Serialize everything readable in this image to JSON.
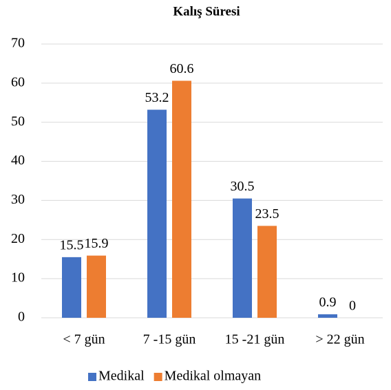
{
  "chart_data": {
    "type": "bar",
    "title": "Kalış Süresi",
    "categories": [
      "< 7 gün",
      "7 -15 gün",
      "15 -21 gün",
      "> 22 gün"
    ],
    "series": [
      {
        "name": "Medikal",
        "color": "#4472c4",
        "values": [
          15.5,
          53.2,
          30.5,
          0.9
        ]
      },
      {
        "name": "Medikal olmayan",
        "color": "#ed7d31",
        "values": [
          15.9,
          60.6,
          23.5,
          0
        ]
      }
    ],
    "ylim": [
      0,
      70
    ],
    "yticks": [
      0,
      10,
      20,
      30,
      40,
      50,
      60,
      70
    ],
    "grid": true,
    "legend": "bottom"
  }
}
